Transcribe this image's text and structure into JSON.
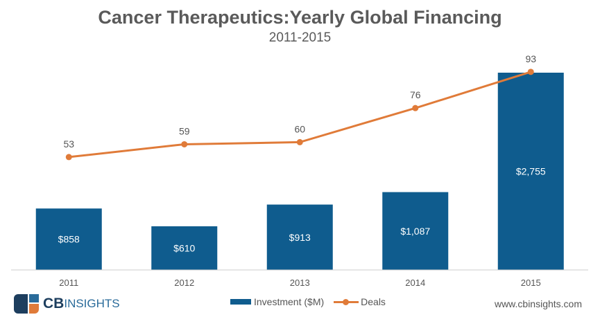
{
  "chart_data": {
    "type": "bar+line",
    "title": "Cancer Therapeutics:Yearly Global Financing",
    "subtitle": "2011-2015",
    "categories": [
      "2011",
      "2012",
      "2013",
      "2014",
      "2015"
    ],
    "series": [
      {
        "name": "Investment ($M)",
        "type": "bar",
        "values": [
          858,
          610,
          913,
          1087,
          2755
        ],
        "labels": [
          "$858",
          "$610",
          "$913",
          "$1,087",
          "$2,755"
        ],
        "color": "#0f5c8e"
      },
      {
        "name": "Deals",
        "type": "line",
        "values": [
          53,
          59,
          60,
          76,
          93
        ],
        "labels": [
          "53",
          "59",
          "60",
          "76",
          "93"
        ],
        "color": "#e07b39"
      }
    ],
    "ylim_investment": [
      0,
      2900
    ],
    "ylim_deals": [
      0,
      97.5
    ],
    "grid": false,
    "legend": "bottom-center"
  },
  "branding": {
    "logo_text_bold": "CB",
    "logo_text": "INSIGHTS",
    "website": "www.cbinsights.com"
  }
}
